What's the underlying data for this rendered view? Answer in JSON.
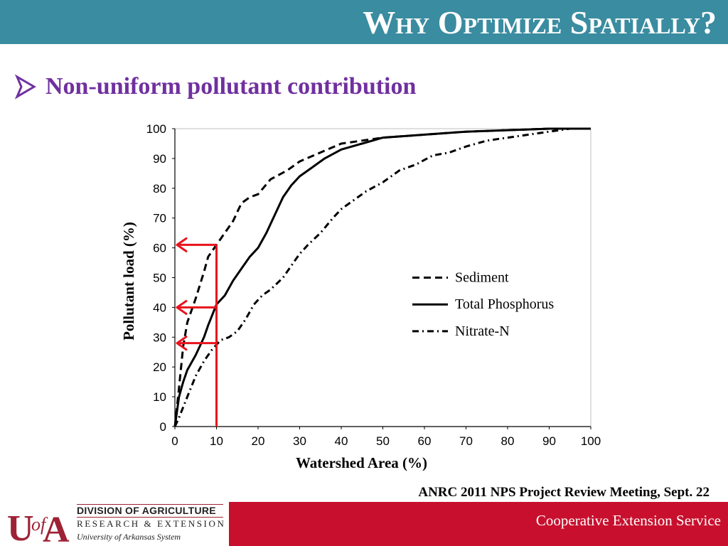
{
  "slide": {
    "title": "Why Optimize Spatially?",
    "bullet": "Non-uniform pollutant contribution",
    "meeting": "ANRC 2011 NPS Project Review Meeting, Sept. 22",
    "footer": {
      "logo_line1": "DIVISION OF AGRICULTURE",
      "logo_line2": "RESEARCH & EXTENSION",
      "logo_line3": "University of Arkansas System",
      "logo_mark": "UofA",
      "service": "Cooperative Extension Service"
    },
    "colors": {
      "title_bar": "#3a8ca0",
      "bullet": "#7030a0",
      "footer_red": "#c8102e",
      "arrows": "#e8141c"
    }
  },
  "chart_data": {
    "type": "line",
    "xlabel": "Watershed Area (%)",
    "ylabel": "Pollutant load (%)",
    "xlim": [
      0,
      100
    ],
    "ylim": [
      0,
      100
    ],
    "x_ticks": [
      "0",
      "10",
      "20",
      "30",
      "40",
      "50",
      "60",
      "70",
      "80",
      "90",
      "100"
    ],
    "y_ticks": [
      "0",
      "10",
      "20",
      "30",
      "40",
      "50",
      "60",
      "70",
      "80",
      "90",
      "100"
    ],
    "grid": false,
    "legend_position": "center-right",
    "series": [
      {
        "name": "Sediment",
        "dash": "dashed",
        "points": [
          [
            0,
            0
          ],
          [
            1,
            13
          ],
          [
            2,
            27
          ],
          [
            3,
            35
          ],
          [
            5,
            43
          ],
          [
            7,
            52
          ],
          [
            8,
            57
          ],
          [
            10,
            61
          ],
          [
            12,
            65
          ],
          [
            14,
            69
          ],
          [
            16,
            75
          ],
          [
            18,
            77
          ],
          [
            20,
            78
          ],
          [
            23,
            83
          ],
          [
            27,
            86
          ],
          [
            30,
            89
          ],
          [
            35,
            92
          ],
          [
            40,
            95
          ],
          [
            50,
            97
          ],
          [
            60,
            98
          ],
          [
            70,
            99
          ],
          [
            80,
            99.5
          ],
          [
            90,
            100
          ],
          [
            100,
            100
          ]
        ]
      },
      {
        "name": "Total Phosphorus",
        "dash": "solid",
        "points": [
          [
            0,
            0
          ],
          [
            1,
            10
          ],
          [
            2,
            15
          ],
          [
            3,
            19
          ],
          [
            5,
            24
          ],
          [
            7,
            30
          ],
          [
            8,
            34
          ],
          [
            10,
            41
          ],
          [
            12,
            44
          ],
          [
            14,
            49
          ],
          [
            16,
            53
          ],
          [
            18,
            57
          ],
          [
            20,
            60
          ],
          [
            22,
            65
          ],
          [
            24,
            71
          ],
          [
            26,
            77
          ],
          [
            28,
            81
          ],
          [
            30,
            84
          ],
          [
            33,
            87
          ],
          [
            36,
            90
          ],
          [
            40,
            93
          ],
          [
            45,
            95
          ],
          [
            50,
            97
          ],
          [
            60,
            98
          ],
          [
            70,
            99
          ],
          [
            80,
            99.5
          ],
          [
            90,
            100
          ],
          [
            100,
            100
          ]
        ]
      },
      {
        "name": "Nitrate-N",
        "dash": "dash-dot",
        "points": [
          [
            0,
            0
          ],
          [
            1,
            3
          ],
          [
            3,
            10
          ],
          [
            5,
            17
          ],
          [
            7,
            22
          ],
          [
            9,
            26
          ],
          [
            11,
            29
          ],
          [
            13,
            30
          ],
          [
            15,
            32
          ],
          [
            17,
            36
          ],
          [
            19,
            41
          ],
          [
            21,
            44
          ],
          [
            23,
            46
          ],
          [
            26,
            50
          ],
          [
            28,
            54
          ],
          [
            30,
            58
          ],
          [
            32,
            61
          ],
          [
            35,
            65
          ],
          [
            38,
            70
          ],
          [
            40,
            73
          ],
          [
            43,
            76
          ],
          [
            46,
            79
          ],
          [
            50,
            82
          ],
          [
            54,
            86
          ],
          [
            58,
            88
          ],
          [
            62,
            91
          ],
          [
            66,
            92
          ],
          [
            70,
            94
          ],
          [
            75,
            96
          ],
          [
            80,
            97
          ],
          [
            85,
            98
          ],
          [
            90,
            99
          ],
          [
            95,
            100
          ],
          [
            100,
            100
          ]
        ]
      }
    ],
    "annotations": {
      "vertical_line_x": 10,
      "arrows_to_y_axis": [
        61,
        40,
        28
      ]
    }
  }
}
